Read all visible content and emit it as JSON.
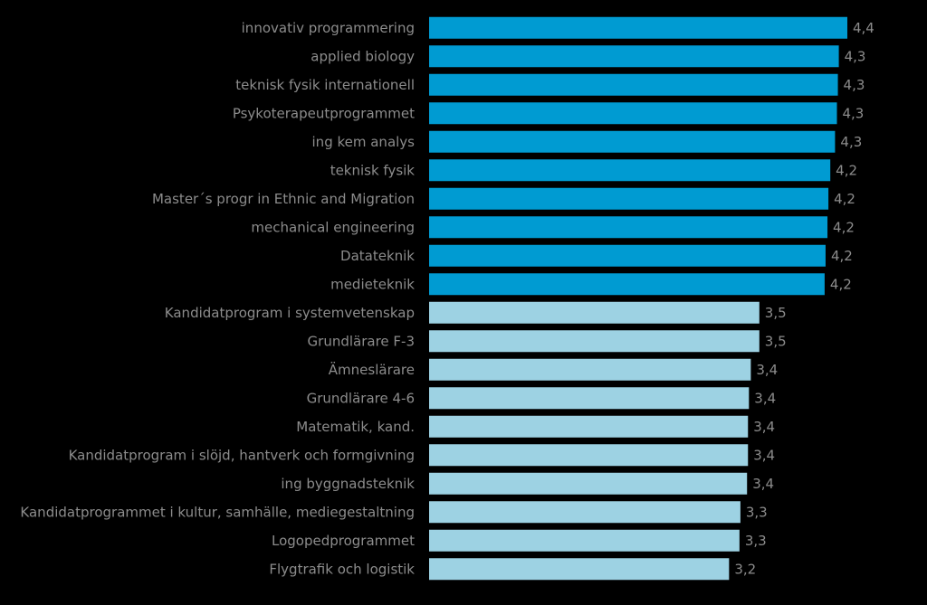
{
  "chart_data": {
    "type": "bar",
    "orientation": "horizontal",
    "categories": [
      "innovativ programmering",
      "applied biology",
      "teknisk fysik internationell",
      "Psykoterapeutprogrammet",
      "ing kem analys",
      "teknisk fysik",
      "Master´s progr in Ethnic and Migration",
      "mechanical engineering",
      "Datateknik",
      "medieteknik",
      "Kandidatprogram i systemvetenskap",
      "Grundlärare F-3",
      "Ämneslärare",
      "Grundlärare 4-6",
      "Matematik, kand.",
      "Kandidatprogram i slöjd, hantverk och formgivning",
      "ing byggnadsteknik",
      "Kandidatprogrammet i kultur, samhälle, mediegestaltning",
      "Logopedprogrammet",
      "Flygtrafik och logistik"
    ],
    "values": [
      4.42,
      4.33,
      4.32,
      4.31,
      4.29,
      4.24,
      4.22,
      4.21,
      4.19,
      4.18,
      3.49,
      3.49,
      3.4,
      3.38,
      3.37,
      3.37,
      3.36,
      3.29,
      3.28,
      3.17
    ],
    "value_labels": [
      "4,4",
      "4,3",
      "4,3",
      "4,3",
      "4,3",
      "4,2",
      "4,2",
      "4,2",
      "4,2",
      "4,2",
      "3,5",
      "3,5",
      "3,4",
      "3,4",
      "3,4",
      "3,4",
      "3,4",
      "3,3",
      "3,3",
      "3,2"
    ],
    "highlight": [
      true,
      true,
      true,
      true,
      true,
      true,
      true,
      true,
      true,
      true,
      false,
      false,
      false,
      false,
      false,
      false,
      false,
      false,
      false,
      false
    ],
    "xlim": [
      0,
      4.42
    ],
    "title": "",
    "xlabel": "",
    "ylabel": "",
    "grid": false,
    "legend": "none",
    "colors": {
      "background": "#000000",
      "bar_top": "#009bd2",
      "bar_bottom": "#9dd2e3",
      "text": "#8c8c8c"
    }
  }
}
